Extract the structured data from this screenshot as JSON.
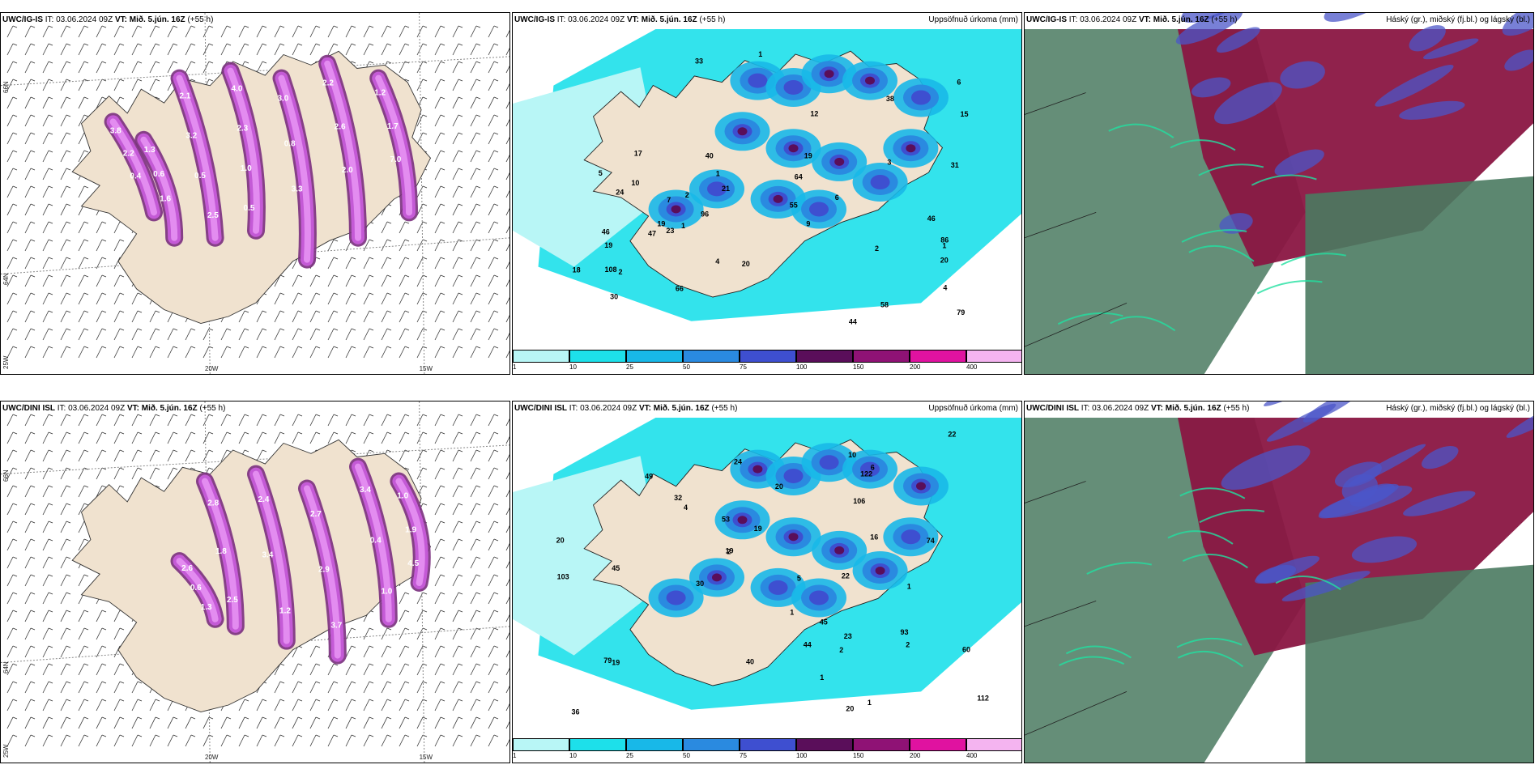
{
  "colors": {
    "land": "#f0e2cf",
    "purple_light": "#e38cf0",
    "purple_mid": "#c45ad6",
    "purple_dark": "#7a2f7e",
    "precip_c1": "#b8f6f6",
    "precip_c2": "#1de0ea",
    "precip_c3": "#18b8e8",
    "precip_c4": "#2a8ae0",
    "precip_c5": "#3e4fd0",
    "precip_c6": "#5a0e5a",
    "precip_c7": "#8f1275",
    "precip_c8": "#e012a0",
    "precip_c9": "#f4b4f0",
    "cloud_high": "#4a7a60",
    "cloud_mid": "#8a1642",
    "cloud_low": "#4b56c8"
  },
  "rows": [
    {
      "model": "UWC/IG-IS",
      "it_label": "IT:",
      "it_value": "03.06.2024 09Z",
      "vt_label": "VT: Mið. 5.jún. 16Z",
      "lead": "(+55 h)",
      "panel_wind": {
        "lat_labels": [
          "66N",
          "64N"
        ],
        "lon_labels": [
          "20W",
          "15W"
        ],
        "corner_label": "25W",
        "values": [
          "2.1",
          "4.0",
          "3.0",
          "2.2",
          "1.2",
          "1.3",
          "3.8",
          "3.2",
          "2.3",
          "0.8",
          "2.6",
          "1.7",
          "0.6",
          "2.2",
          "0.5",
          "1.0",
          "3.3",
          "2.0",
          "7.0",
          "1.6",
          "0.4",
          "2.5",
          "0.5"
        ]
      },
      "panel_precip": {
        "title_right": "Uppsöfnuð úrkoma (mm)",
        "colorbar_ticks": [
          "1",
          "10",
          "25",
          "50",
          "75",
          "100",
          "150",
          "200",
          "400"
        ],
        "values": [
          "10",
          "5",
          "20",
          "20",
          "21",
          "19",
          "19",
          "47",
          "12",
          "9",
          "15",
          "23",
          "30",
          "46",
          "79",
          "108",
          "33",
          "31",
          "86",
          "44",
          "64",
          "58",
          "19",
          "17",
          "18",
          "40",
          "24",
          "46",
          "96",
          "38",
          "66",
          "55",
          "4",
          "1",
          "1",
          "2",
          "7",
          "6",
          "4",
          "2",
          "3",
          "1",
          "6",
          "2",
          "1"
        ]
      },
      "panel_clouds": {
        "title_right": "Háský (gr.), miðský (fj.bl.) og lágský (bl.)"
      }
    },
    {
      "model": "UWC/DINI ISL",
      "it_label": "IT:",
      "it_value": "03.06.2024 09Z",
      "vt_label": "VT: Mið. 5.jún. 16Z",
      "lead": "(+55 h)",
      "panel_wind": {
        "lat_labels": [
          "66N",
          "64N"
        ],
        "lon_labels": [
          "20W",
          "15W"
        ],
        "corner_label": "25W",
        "values": [
          "2.8",
          "2.4",
          "2.7",
          "3.4",
          "1.0",
          "2.6",
          "1.8",
          "3.4",
          "2.9",
          "0.4",
          "1.9",
          "0.6",
          "2.5",
          "1.2",
          "3.7",
          "1.0",
          "4.5",
          "1.3"
        ]
      },
      "panel_precip": {
        "title_right": "Uppsöfnuð úrkoma (mm)",
        "colorbar_ticks": [
          "1",
          "10",
          "25",
          "50",
          "75",
          "100",
          "150",
          "200",
          "400"
        ],
        "values": [
          "19",
          "20",
          "20",
          "19",
          "20",
          "22",
          "45",
          "79",
          "106",
          "93",
          "30",
          "60",
          "40",
          "112",
          "16",
          "24",
          "53",
          "19",
          "36",
          "22",
          "32",
          "23",
          "74",
          "122",
          "45",
          "44",
          "103",
          "49",
          "2",
          "1",
          "1",
          "2",
          "1",
          "6",
          "10",
          "5",
          "4",
          "2",
          "1"
        ]
      },
      "panel_clouds": {
        "title_right": "Háský (gr.), miðský (fj.bl.) og lágský (bl.)"
      }
    }
  ]
}
